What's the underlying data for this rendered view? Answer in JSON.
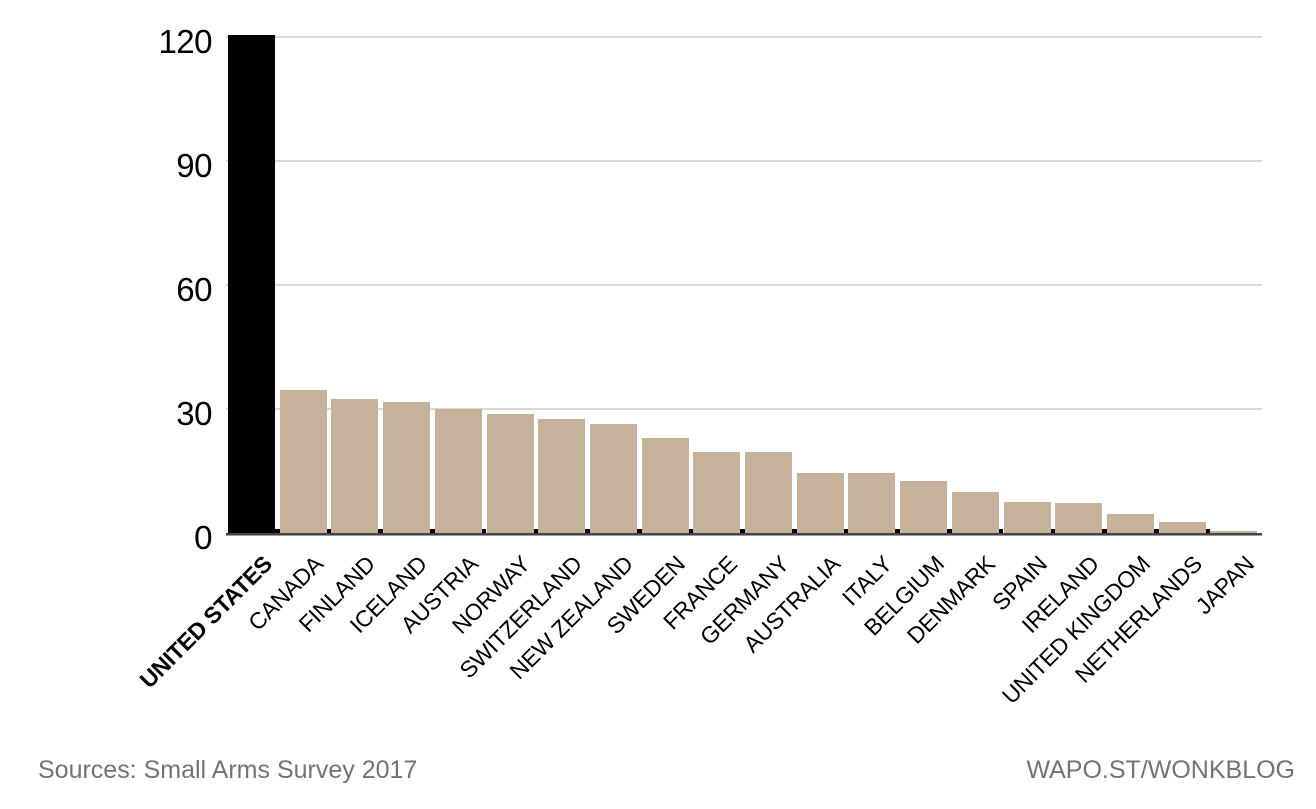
{
  "chart_data": {
    "type": "bar",
    "categories": [
      "UNITED STATES",
      "CANADA",
      "FINLAND",
      "ICELAND",
      "AUSTRIA",
      "NORWAY",
      "SWITZERLAND",
      "NEW ZEALAND",
      "SWEDEN",
      "FRANCE",
      "GERMANY",
      "AUSTRALIA",
      "ITALY",
      "BELGIUM",
      "DENMARK",
      "SPAIN",
      "IRELAND",
      "UNITED KINGDOM",
      "NETHERLANDS",
      "JAPAN"
    ],
    "values": [
      120.5,
      34.7,
      32.4,
      31.7,
      30.0,
      28.8,
      27.6,
      26.3,
      23.1,
      19.6,
      19.6,
      14.5,
      14.4,
      12.7,
      9.9,
      7.5,
      7.2,
      4.6,
      2.6,
      0.3
    ],
    "highlight_category": "UNITED STATES",
    "highlight_index": 0,
    "yticks": [
      0,
      30,
      60,
      90,
      120
    ],
    "ylim": [
      0,
      124
    ],
    "grid": true,
    "legend": "none",
    "colors": {
      "bar": "#c6b19a",
      "highlight": "#000000",
      "gridline": "#d8d8d8",
      "axis_dark": "#454545",
      "axis_light": "#9b9b9b",
      "label_text": "#000000",
      "footer_text": "#737373"
    },
    "footer": {
      "source": "Sources: Small Arms Survey 2017",
      "credit": "WAPO.ST/WONKBLOG"
    }
  }
}
